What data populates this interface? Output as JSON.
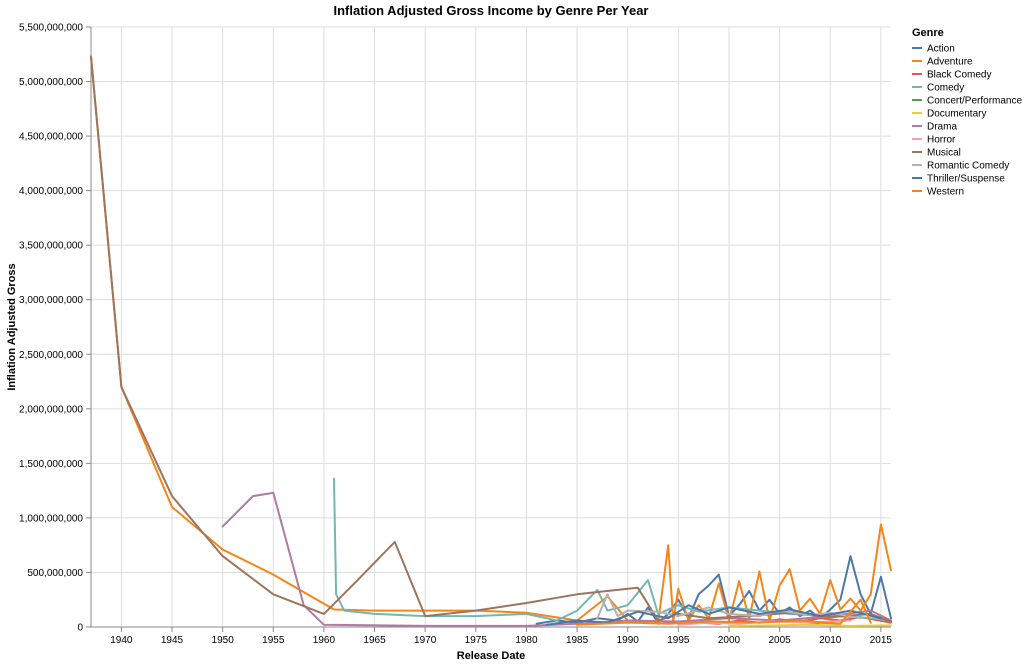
{
  "chart_data": {
    "type": "line",
    "title": "Inflation Adjusted Gross Income by Genre Per Year",
    "xlabel": "Release Date",
    "ylabel": "Inflation Adjusted Gross",
    "xlim": [
      1937,
      2016
    ],
    "ylim": [
      0,
      5500000000
    ],
    "x_ticks": [
      1940,
      1945,
      1950,
      1955,
      1960,
      1965,
      1970,
      1975,
      1980,
      1985,
      1990,
      1995,
      2000,
      2005,
      2010,
      2015
    ],
    "y_ticks": [
      0,
      500000000,
      1000000000,
      1500000000,
      2000000000,
      2500000000,
      3000000000,
      3500000000,
      4000000000,
      4500000000,
      5000000000,
      5500000000
    ],
    "y_tick_labels": [
      "0",
      "500,000,000",
      "1,000,000,000",
      "1,500,000,000",
      "2,000,000,000",
      "2,500,000,000",
      "3,000,000,000",
      "3,500,000,000",
      "4,000,000,000",
      "4,500,000,000",
      "5,000,000,000",
      "5,500,000,000"
    ],
    "grid": true,
    "legend": {
      "title": "Genre",
      "position": "right"
    },
    "series": [
      {
        "name": "Action",
        "color": "#4c78a8",
        "points": [
          [
            1981,
            30000000
          ],
          [
            1983,
            60000000
          ],
          [
            1985,
            40000000
          ],
          [
            1987,
            80000000
          ],
          [
            1989,
            60000000
          ],
          [
            1990,
            120000000
          ],
          [
            1991,
            50000000
          ],
          [
            1992,
            180000000
          ],
          [
            1993,
            40000000
          ],
          [
            1994,
            120000000
          ],
          [
            1995,
            250000000
          ],
          [
            1996,
            80000000
          ],
          [
            1997,
            300000000
          ],
          [
            1998,
            380000000
          ],
          [
            1999,
            480000000
          ],
          [
            2000,
            100000000
          ],
          [
            2001,
            200000000
          ],
          [
            2002,
            330000000
          ],
          [
            2003,
            150000000
          ],
          [
            2004,
            250000000
          ],
          [
            2005,
            120000000
          ],
          [
            2006,
            180000000
          ],
          [
            2007,
            100000000
          ],
          [
            2008,
            150000000
          ],
          [
            2009,
            80000000
          ],
          [
            2010,
            160000000
          ],
          [
            2011,
            250000000
          ],
          [
            2012,
            650000000
          ],
          [
            2013,
            300000000
          ],
          [
            2014,
            120000000
          ],
          [
            2015,
            460000000
          ],
          [
            2016,
            80000000
          ]
        ]
      },
      {
        "name": "Adventure",
        "color": "#f58518",
        "points": [
          [
            1937,
            5230000000
          ],
          [
            1940,
            2200000000
          ],
          [
            1945,
            1100000000
          ],
          [
            1950,
            710000000
          ],
          [
            1955,
            480000000
          ],
          [
            1961,
            160000000
          ],
          [
            1965,
            150000000
          ],
          [
            1970,
            150000000
          ],
          [
            1975,
            150000000
          ],
          [
            1980,
            130000000
          ],
          [
            1985,
            60000000
          ],
          [
            1988,
            280000000
          ],
          [
            1990,
            60000000
          ],
          [
            1993,
            40000000
          ],
          [
            1994,
            750000000
          ],
          [
            1994.5,
            50000000
          ],
          [
            1995,
            350000000
          ],
          [
            1996,
            60000000
          ],
          [
            1997,
            200000000
          ],
          [
            1998,
            80000000
          ],
          [
            1999,
            400000000
          ],
          [
            2000,
            60000000
          ],
          [
            2001,
            420000000
          ],
          [
            2002,
            80000000
          ],
          [
            2003,
            510000000
          ],
          [
            2004,
            60000000
          ],
          [
            2005,
            380000000
          ],
          [
            2006,
            530000000
          ],
          [
            2007,
            150000000
          ],
          [
            2008,
            260000000
          ],
          [
            2009,
            120000000
          ],
          [
            2010,
            430000000
          ],
          [
            2011,
            160000000
          ],
          [
            2012,
            260000000
          ],
          [
            2013,
            150000000
          ],
          [
            2014,
            300000000
          ],
          [
            2015,
            940000000
          ],
          [
            2016,
            520000000
          ]
        ]
      },
      {
        "name": "Black Comedy",
        "color": "#e45756",
        "points": [
          [
            1993,
            30000000
          ],
          [
            1995,
            50000000
          ],
          [
            1997,
            40000000
          ],
          [
            1999,
            30000000
          ],
          [
            2001,
            60000000
          ],
          [
            2003,
            40000000
          ],
          [
            2005,
            70000000
          ],
          [
            2007,
            50000000
          ],
          [
            2009,
            80000000
          ],
          [
            2011,
            60000000
          ],
          [
            2013,
            90000000
          ],
          [
            2016,
            40000000
          ]
        ]
      },
      {
        "name": "Comedy",
        "color": "#72b7b2",
        "points": [
          [
            1961,
            1360000000
          ],
          [
            1961.2,
            300000000
          ],
          [
            1962,
            150000000
          ],
          [
            1965,
            120000000
          ],
          [
            1970,
            100000000
          ],
          [
            1975,
            100000000
          ],
          [
            1980,
            120000000
          ],
          [
            1983,
            60000000
          ],
          [
            1985,
            150000000
          ],
          [
            1987,
            340000000
          ],
          [
            1988,
            150000000
          ],
          [
            1990,
            200000000
          ],
          [
            1992,
            430000000
          ],
          [
            1993,
            120000000
          ],
          [
            1995,
            200000000
          ],
          [
            1997,
            140000000
          ],
          [
            2000,
            180000000
          ],
          [
            2003,
            150000000
          ],
          [
            2006,
            120000000
          ],
          [
            2010,
            100000000
          ],
          [
            2013,
            90000000
          ],
          [
            2016,
            60000000
          ]
        ]
      },
      {
        "name": "Concert/Performance",
        "color": "#54a24b",
        "points": [
          [
            2008,
            20000000
          ],
          [
            2009,
            40000000
          ],
          [
            2011,
            30000000
          ]
        ]
      },
      {
        "name": "Documentary",
        "color": "#eeca3b",
        "points": [
          [
            2000,
            10000000
          ],
          [
            2004,
            15000000
          ],
          [
            2008,
            20000000
          ],
          [
            2012,
            10000000
          ],
          [
            2016,
            15000000
          ]
        ]
      },
      {
        "name": "Drama",
        "color": "#b279a2",
        "points": [
          [
            1950,
            920000000
          ],
          [
            1953,
            1200000000
          ],
          [
            1955,
            1230000000
          ],
          [
            1958,
            200000000
          ],
          [
            1960,
            20000000
          ],
          [
            1970,
            10000000
          ],
          [
            1980,
            10000000
          ],
          [
            1985,
            30000000
          ],
          [
            1990,
            60000000
          ],
          [
            1995,
            50000000
          ],
          [
            2000,
            80000000
          ],
          [
            2005,
            60000000
          ],
          [
            2010,
            100000000
          ],
          [
            2014,
            150000000
          ],
          [
            2016,
            60000000
          ]
        ]
      },
      {
        "name": "Horror",
        "color": "#ff9da6",
        "points": [
          [
            1995,
            20000000
          ],
          [
            1998,
            40000000
          ],
          [
            2001,
            30000000
          ],
          [
            2004,
            50000000
          ],
          [
            2008,
            40000000
          ],
          [
            2012,
            60000000
          ]
        ]
      },
      {
        "name": "Musical",
        "color": "#9d755d",
        "points": [
          [
            1937,
            5230000000
          ],
          [
            1940,
            2200000000
          ],
          [
            1945,
            1200000000
          ],
          [
            1950,
            650000000
          ],
          [
            1955,
            300000000
          ],
          [
            1960,
            120000000
          ],
          [
            1963,
            400000000
          ],
          [
            1967,
            780000000
          ],
          [
            1970,
            100000000
          ],
          [
            1975,
            150000000
          ],
          [
            1980,
            220000000
          ],
          [
            1985,
            300000000
          ],
          [
            1991,
            360000000
          ],
          [
            1993,
            60000000
          ],
          [
            1995,
            120000000
          ],
          [
            1998,
            80000000
          ],
          [
            2002,
            100000000
          ],
          [
            2006,
            130000000
          ],
          [
            2010,
            90000000
          ],
          [
            2014,
            120000000
          ],
          [
            2016,
            50000000
          ]
        ]
      },
      {
        "name": "Romantic Comedy",
        "color": "#bab0ac",
        "points": [
          [
            1987,
            80000000
          ],
          [
            1988,
            300000000
          ],
          [
            1989,
            100000000
          ],
          [
            1990,
            150000000
          ],
          [
            1993,
            140000000
          ],
          [
            1995,
            100000000
          ],
          [
            1998,
            180000000
          ],
          [
            2000,
            120000000
          ],
          [
            2003,
            100000000
          ],
          [
            2005,
            150000000
          ],
          [
            2008,
            110000000
          ],
          [
            2010,
            130000000
          ],
          [
            2013,
            80000000
          ]
        ]
      },
      {
        "name": "Thriller/Suspense",
        "color": "#4c78a8",
        "points": [
          [
            1982,
            20000000
          ],
          [
            1985,
            60000000
          ],
          [
            1988,
            40000000
          ],
          [
            1991,
            140000000
          ],
          [
            1994,
            80000000
          ],
          [
            1996,
            200000000
          ],
          [
            1998,
            120000000
          ],
          [
            2000,
            180000000
          ],
          [
            2003,
            120000000
          ],
          [
            2006,
            160000000
          ],
          [
            2009,
            100000000
          ],
          [
            2012,
            150000000
          ],
          [
            2015,
            80000000
          ]
        ]
      },
      {
        "name": "Western",
        "color": "#f58518",
        "points": [
          [
            1985,
            20000000
          ],
          [
            1990,
            40000000
          ],
          [
            1994,
            30000000
          ],
          [
            1998,
            50000000
          ],
          [
            2003,
            40000000
          ],
          [
            2007,
            60000000
          ],
          [
            2011,
            30000000
          ],
          [
            2013,
            250000000
          ],
          [
            2014,
            40000000
          ]
        ]
      }
    ]
  }
}
